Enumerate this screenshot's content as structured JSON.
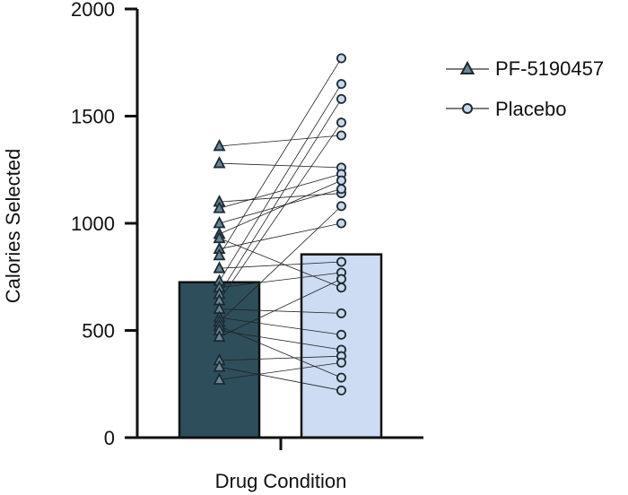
{
  "chart_data": {
    "type": "bar",
    "title": "",
    "xlabel": "Drug Condition",
    "ylabel": "Calories Selected",
    "ylim": [
      0,
      2000
    ],
    "yticks": [
      "0",
      "500",
      "1000",
      "1500",
      "2000"
    ],
    "grid": false,
    "legend_position": "top-right",
    "series": [
      {
        "name": "PF-5190457",
        "mean": 725,
        "marker": "triangle",
        "color": "#2e4e5c",
        "marker_fill": "#6b8594"
      },
      {
        "name": "Placebo",
        "mean": 855,
        "marker": "circle",
        "color": "#cddcf2",
        "marker_fill": "#cad6ea"
      }
    ],
    "paired_values": [
      [
        1360,
        1410
      ],
      [
        1280,
        1260
      ],
      [
        1100,
        1140
      ],
      [
        1070,
        1230
      ],
      [
        1000,
        1160
      ],
      [
        950,
        1200
      ],
      [
        930,
        700
      ],
      [
        880,
        1000
      ],
      [
        850,
        1770
      ],
      [
        790,
        820
      ],
      [
        730,
        1650
      ],
      [
        700,
        770
      ],
      [
        670,
        1580
      ],
      [
        640,
        1470
      ],
      [
        600,
        580
      ],
      [
        560,
        480
      ],
      [
        540,
        1080
      ],
      [
        520,
        280
      ],
      [
        500,
        410
      ],
      [
        470,
        740
      ],
      [
        360,
        380
      ],
      [
        330,
        220
      ],
      [
        270,
        350
      ]
    ]
  }
}
